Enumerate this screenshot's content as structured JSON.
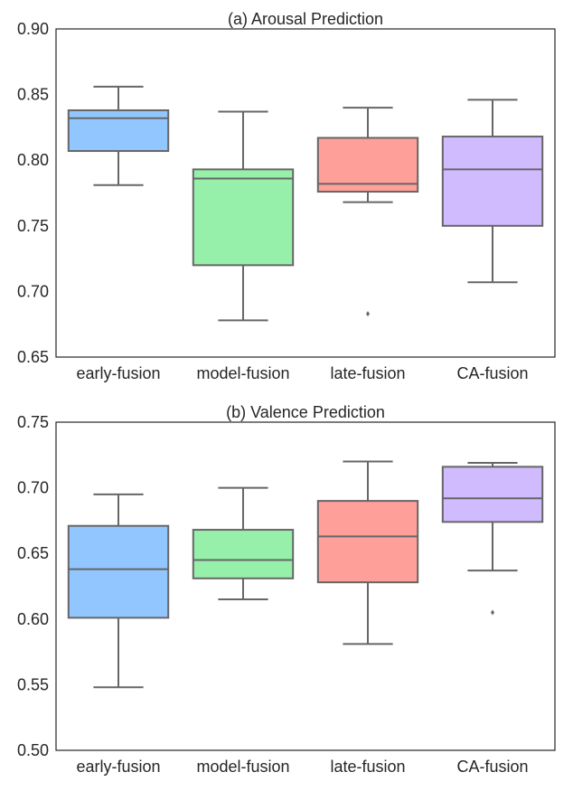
{
  "chart_data": [
    {
      "type": "box",
      "title": "(a) Arousal Prediction",
      "xlabel": "",
      "ylabel": "",
      "ylim": [
        0.65,
        0.9
      ],
      "yticks": [
        "0.65",
        "0.70",
        "0.75",
        "0.80",
        "0.85",
        "0.90"
      ],
      "grid": false,
      "categories": [
        "early-fusion",
        "model-fusion",
        "late-fusion",
        "CA-fusion"
      ],
      "colors": [
        "#92C6FF",
        "#97F0AA",
        "#FF9F9A",
        "#D0BBFF"
      ],
      "boxes": [
        {
          "whisker_low": 0.781,
          "q1": 0.807,
          "median": 0.832,
          "q3": 0.838,
          "whisker_high": 0.856,
          "outliers": []
        },
        {
          "whisker_low": 0.678,
          "q1": 0.72,
          "median": 0.786,
          "q3": 0.793,
          "whisker_high": 0.837,
          "outliers": []
        },
        {
          "whisker_low": 0.768,
          "q1": 0.776,
          "median": 0.782,
          "q3": 0.817,
          "whisker_high": 0.84,
          "outliers": [
            0.683
          ]
        },
        {
          "whisker_low": 0.707,
          "q1": 0.75,
          "median": 0.793,
          "q3": 0.818,
          "whisker_high": 0.846,
          "outliers": []
        }
      ]
    },
    {
      "type": "box",
      "title": "(b) Valence Prediction",
      "xlabel": "",
      "ylabel": "",
      "ylim": [
        0.5,
        0.75
      ],
      "yticks": [
        "0.50",
        "0.55",
        "0.60",
        "0.65",
        "0.70",
        "0.75"
      ],
      "grid": false,
      "categories": [
        "early-fusion",
        "model-fusion",
        "late-fusion",
        "CA-fusion"
      ],
      "colors": [
        "#92C6FF",
        "#97F0AA",
        "#FF9F9A",
        "#D0BBFF"
      ],
      "boxes": [
        {
          "whisker_low": 0.548,
          "q1": 0.601,
          "median": 0.638,
          "q3": 0.671,
          "whisker_high": 0.695,
          "outliers": []
        },
        {
          "whisker_low": 0.615,
          "q1": 0.631,
          "median": 0.645,
          "q3": 0.668,
          "whisker_high": 0.7,
          "outliers": []
        },
        {
          "whisker_low": 0.581,
          "q1": 0.628,
          "median": 0.663,
          "q3": 0.69,
          "whisker_high": 0.72,
          "outliers": []
        },
        {
          "whisker_low": 0.637,
          "q1": 0.674,
          "median": 0.692,
          "q3": 0.716,
          "whisker_high": 0.719,
          "outliers": [
            0.605
          ]
        }
      ]
    }
  ]
}
